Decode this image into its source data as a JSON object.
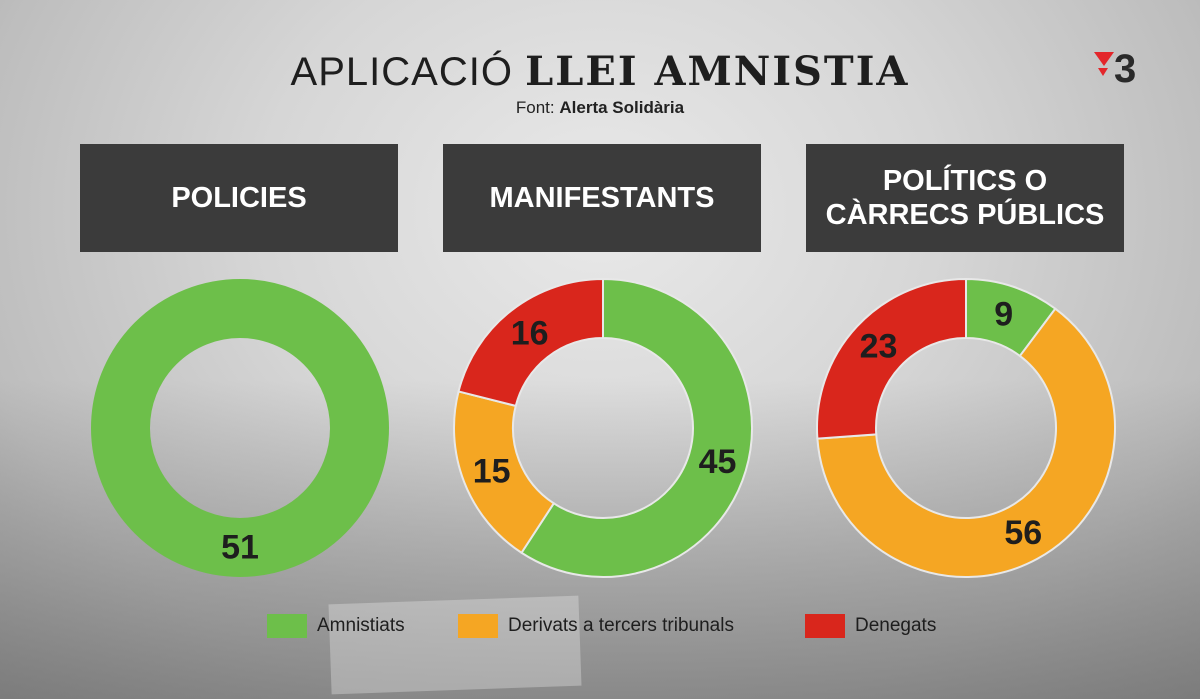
{
  "title": {
    "part1": "APLICACIÓ",
    "part2": "LLEI AMNISTIA"
  },
  "source": {
    "label": "Font:",
    "name": "Alerta Solidària"
  },
  "colors": {
    "amnistiats": "#6dbf4a",
    "derivats": "#f5a623",
    "denegats": "#d9261c",
    "panel": "#3b3b3b"
  },
  "categories": [
    {
      "lines": [
        "POLICIES"
      ]
    },
    {
      "lines": [
        "MANIFESTANTS"
      ]
    },
    {
      "lines": [
        "POLÍTICS O",
        "CÀRRECS PÚBLICS"
      ]
    }
  ],
  "legend": [
    "Amnistiats",
    "Derivats a tercers tribunals",
    "Denegats"
  ],
  "chart_data": [
    {
      "type": "pie",
      "title": "POLICIES",
      "series": [
        {
          "name": "Amnistiats",
          "value": 51
        }
      ]
    },
    {
      "type": "pie",
      "title": "MANIFESTANTS",
      "series": [
        {
          "name": "Amnistiats",
          "value": 45
        },
        {
          "name": "Derivats a tercers tribunals",
          "value": 15
        },
        {
          "name": "Denegats",
          "value": 16
        }
      ]
    },
    {
      "type": "pie",
      "title": "POLÍTICS O CÀRRECS PÚBLICS",
      "series": [
        {
          "name": "Amnistiats",
          "value": 9
        },
        {
          "name": "Derivats a tercers tribunals",
          "value": 56
        },
        {
          "name": "Denegats",
          "value": 23
        }
      ]
    }
  ]
}
